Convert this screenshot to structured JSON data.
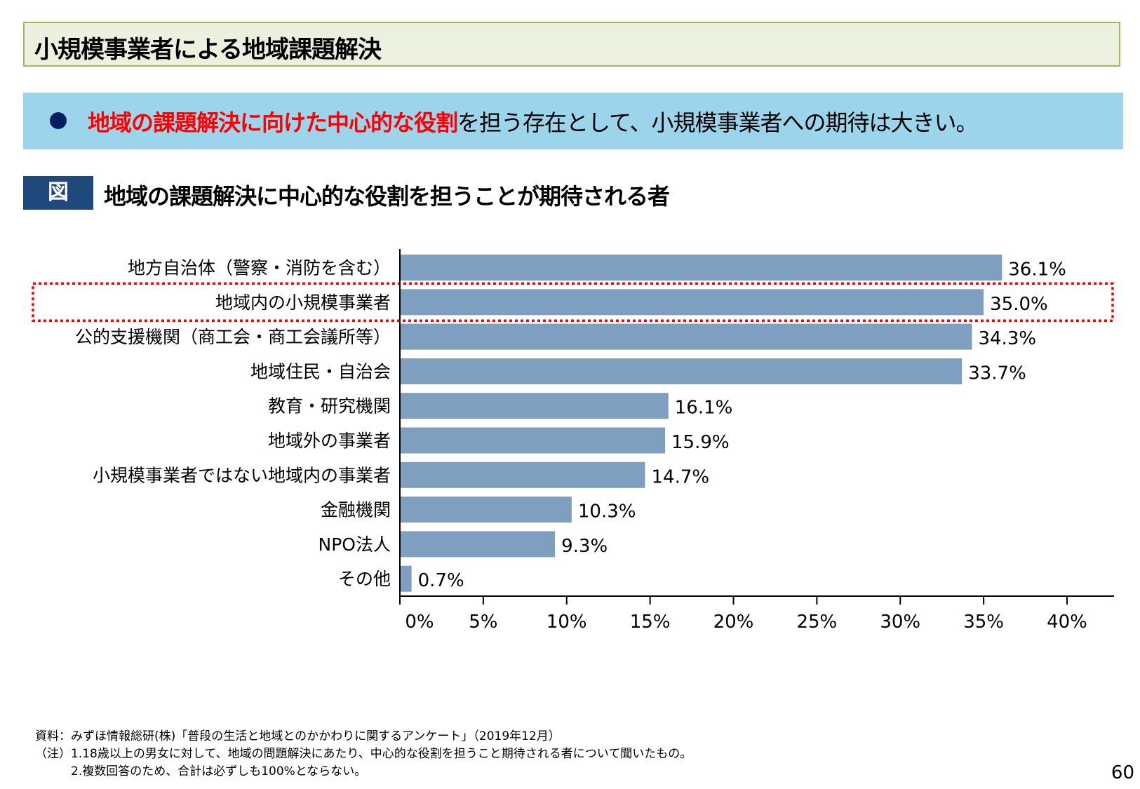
{
  "header": {
    "title": "小規模事業者による地域課題解決"
  },
  "banner": {
    "highlight": "地域の課題解決に向けた中心的な役割",
    "rest": "を担う存在として、小規模事業者への期待は大きい。",
    "bullet_color": "#002060",
    "highlight_color": "#ff0000"
  },
  "figure": {
    "tag": "図",
    "title": "地域の課題解決に中心的な役割を担うことが期待される者"
  },
  "chart_data": {
    "type": "bar",
    "orientation": "horizontal",
    "categories": [
      "地方自治体（警察・消防を含む）",
      "地域内の小規模事業者",
      "公的支援機関（商工会・商工会議所等）",
      "地域住民・自治会",
      "教育・研究機関",
      "地域外の事業者",
      "小規模事業者ではない地域内の事業者",
      "金融機関",
      "NPO法人",
      "その他"
    ],
    "values": [
      36.1,
      35.0,
      34.3,
      33.7,
      16.1,
      15.9,
      14.7,
      10.3,
      9.3,
      0.7
    ],
    "value_labels": [
      "36.1%",
      "35.0%",
      "34.3%",
      "33.7%",
      "16.1%",
      "15.9%",
      "14.7%",
      "10.3%",
      "9.3%",
      "0.7%"
    ],
    "xlim": [
      0,
      40
    ],
    "xticks": [
      0,
      5,
      10,
      15,
      20,
      25,
      30,
      35,
      40
    ],
    "xtick_labels": [
      "0%",
      "5%",
      "10%",
      "15%",
      "20%",
      "25%",
      "30%",
      "35%",
      "40%"
    ],
    "highlighted_category": "地域内の小規模事業者",
    "bar_color": "#7f9fc1",
    "highlight_box_color": "#ff0000",
    "grid": false
  },
  "notes": {
    "source": "資料：みずほ情報総研(株)「普段の生活と地域とのかかわりに関するアンケート」（2019年12月）",
    "note1": "（注）1.18歳以上の男女に対して、地域の問題解決にあたり、中心的な役割を担うこと期待される者について聞いたもの。",
    "note2": "　　　2.複数回答のため、合計は必ずしも100%とならない。"
  },
  "page_number": "60"
}
